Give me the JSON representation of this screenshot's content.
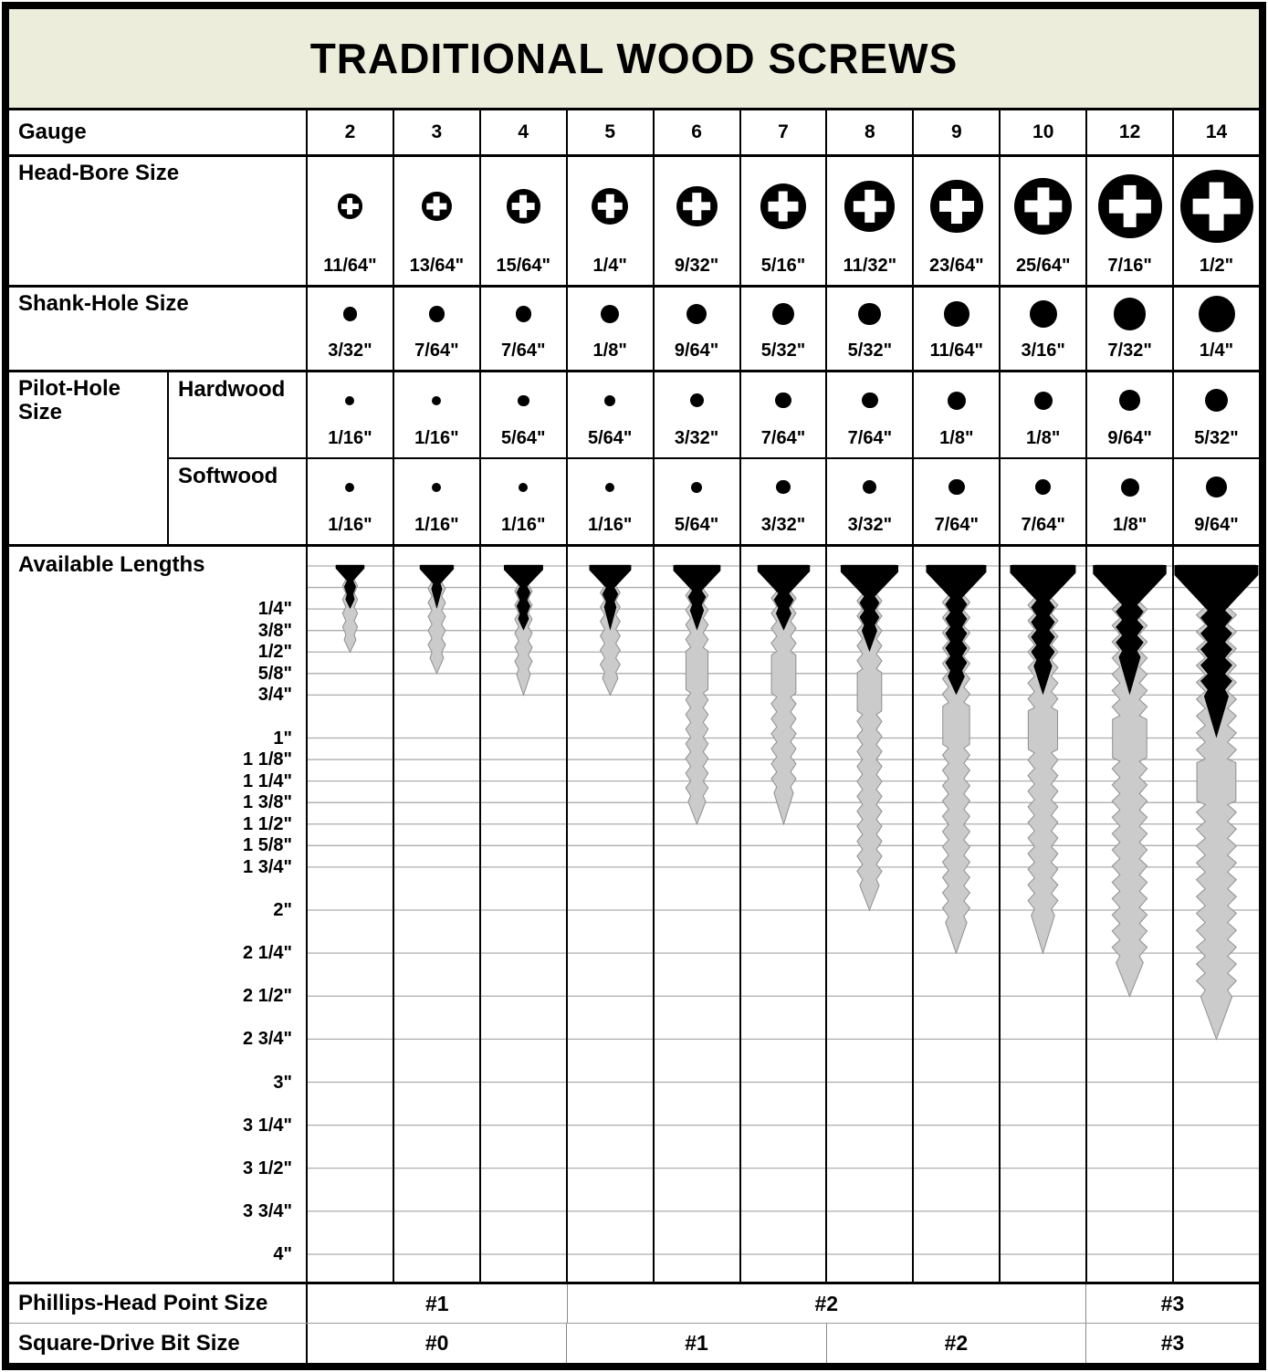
{
  "title": "TRADITIONAL WOOD SCREWS",
  "row_labels": {
    "gauge": "Gauge",
    "head_bore": "Head-Bore Size",
    "shank_hole": "Shank-Hole Size",
    "pilot_hole": "Pilot-Hole Size",
    "hardwood": "Hardwood",
    "softwood": "Softwood",
    "available_lengths": "Available Lengths",
    "phillips": "Phillips-Head Point Size",
    "square_drive": "Square-Drive Bit Size"
  },
  "gauges": [
    "2",
    "3",
    "4",
    "5",
    "6",
    "7",
    "8",
    "9",
    "10",
    "12",
    "14"
  ],
  "head_bore": {
    "fractions": [
      "11/64\"",
      "13/64\"",
      "15/64\"",
      "1/4\"",
      "9/32\"",
      "5/16\"",
      "11/32\"",
      "23/64\"",
      "25/64\"",
      "7/16\"",
      "1/2\""
    ],
    "inches": [
      0.172,
      0.203,
      0.234,
      0.25,
      0.281,
      0.3125,
      0.344,
      0.359,
      0.391,
      0.4375,
      0.5
    ]
  },
  "shank_hole": {
    "fractions": [
      "3/32\"",
      "7/64\"",
      "7/64\"",
      "1/8\"",
      "9/64\"",
      "5/32\"",
      "5/32\"",
      "11/64\"",
      "3/16\"",
      "7/32\"",
      "1/4\""
    ],
    "inches": [
      0.094,
      0.109,
      0.109,
      0.125,
      0.141,
      0.156,
      0.156,
      0.172,
      0.1875,
      0.219,
      0.25
    ]
  },
  "pilot_hardwood": {
    "fractions": [
      "1/16\"",
      "1/16\"",
      "5/64\"",
      "5/64\"",
      "3/32\"",
      "7/64\"",
      "7/64\"",
      "1/8\"",
      "1/8\"",
      "9/64\"",
      "5/32\""
    ],
    "inches": [
      0.0625,
      0.0625,
      0.078,
      0.078,
      0.094,
      0.109,
      0.109,
      0.125,
      0.125,
      0.141,
      0.156
    ]
  },
  "pilot_softwood": {
    "fractions": [
      "1/16\"",
      "1/16\"",
      "1/16\"",
      "1/16\"",
      "5/64\"",
      "3/32\"",
      "3/32\"",
      "7/64\"",
      "7/64\"",
      "1/8\"",
      "9/64\""
    ],
    "inches": [
      0.0625,
      0.0625,
      0.0625,
      0.0625,
      0.078,
      0.094,
      0.094,
      0.109,
      0.109,
      0.125,
      0.141
    ]
  },
  "available_lengths": {
    "tick_labels": [
      "1/4\"",
      "3/8\"",
      "1/2\"",
      "5/8\"",
      "3/4\"",
      "1\"",
      "1 1/8\"",
      "1 1/4\"",
      "1 3/8\"",
      "1 1/2\"",
      "1 5/8\"",
      "1 3/4\"",
      "2\"",
      "2 1/4\"",
      "2 1/2\"",
      "2 3/4\"",
      "3\"",
      "3 1/4\"",
      "3 1/2\"",
      "3 3/4\"",
      "4\""
    ],
    "tick_inches": [
      0.25,
      0.375,
      0.5,
      0.625,
      0.75,
      1,
      1.125,
      1.25,
      1.375,
      1.5,
      1.625,
      1.75,
      2,
      2.25,
      2.5,
      2.75,
      3,
      3.25,
      3.5,
      3.75,
      4
    ],
    "extra_gridline_inches": [
      0,
      0.125
    ],
    "min_inches": [
      0.25,
      0.25,
      0.375,
      0.375,
      0.375,
      0.375,
      0.5,
      0.75,
      0.75,
      0.75,
      1
    ],
    "max_inches": [
      0.5,
      0.625,
      0.75,
      0.75,
      1.5,
      1.5,
      2,
      2.25,
      2.25,
      2.5,
      2.75
    ],
    "min_labels": [
      "1/4\"",
      "1/4\"",
      "3/8\"",
      "3/8\"",
      "3/8\"",
      "3/8\"",
      "1/2\"",
      "3/4\"",
      "3/4\"",
      "3/4\"",
      "1\""
    ],
    "max_labels": [
      "1/2\"",
      "5/8\"",
      "3/4\"",
      "3/4\"",
      "1 1/2\"",
      "1 1/2\"",
      "2\"",
      "2 1/4\"",
      "2 1/4\"",
      "2 1/2\"",
      "2 3/4\""
    ]
  },
  "phillips_point": {
    "spans": [
      {
        "label": "#1",
        "span": 3,
        "gauges": [
          "2",
          "3",
          "4"
        ]
      },
      {
        "label": "#2",
        "span": 6,
        "gauges": [
          "5",
          "6",
          "7",
          "8",
          "9",
          "10"
        ]
      },
      {
        "label": "#3",
        "span": 2,
        "gauges": [
          "12",
          "14"
        ]
      }
    ]
  },
  "square_drive": {
    "spans": [
      {
        "label": "#0",
        "span": 3,
        "gauges": [
          "2",
          "3",
          "4"
        ]
      },
      {
        "label": "#1",
        "span": 3,
        "gauges": [
          "5",
          "6",
          "7"
        ]
      },
      {
        "label": "#2",
        "span": 3,
        "gauges": [
          "8",
          "9",
          "10"
        ]
      },
      {
        "label": "#3",
        "span": 2,
        "gauges": [
          "12",
          "14"
        ]
      }
    ]
  },
  "colors": {
    "title_bg": "#eceedb",
    "ink": "#000000",
    "screw_gray": "#cbcbcb",
    "screw_gray_outline": "#8f8f8f",
    "gridline": "#adadad"
  }
}
